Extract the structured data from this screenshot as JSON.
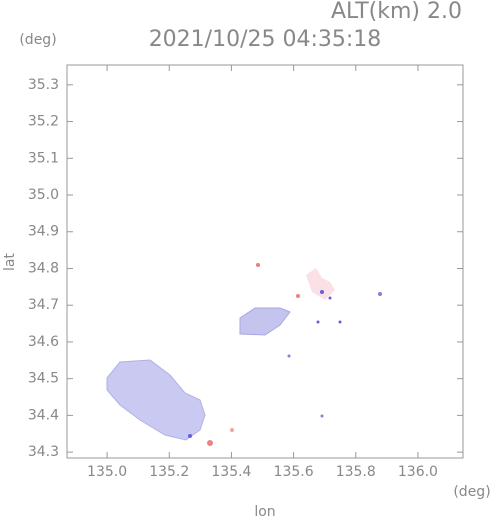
{
  "chart_data": {
    "type": "map",
    "title": "2021/10/25 04:35:18",
    "subtitle": "ALT(km) 2.0",
    "x_label": "lon",
    "y_label": "lat",
    "x_unit": "(deg)",
    "y_unit": "(deg)",
    "xlim": [
      134.871,
      136.145
    ],
    "ylim": [
      34.284,
      35.354
    ],
    "xticks": [
      {
        "value": 135.0,
        "label": "135.0"
      },
      135.2,
      135.4,
      135.6,
      135.8,
      {
        "value": 136.0,
        "label": "136.0"
      }
    ],
    "yticks": [
      34.3,
      34.4,
      34.5,
      34.6,
      34.7,
      34.8,
      34.9,
      {
        "value": 35.0,
        "label": "35.0"
      },
      35.1,
      35.2,
      35.3
    ]
  }
}
